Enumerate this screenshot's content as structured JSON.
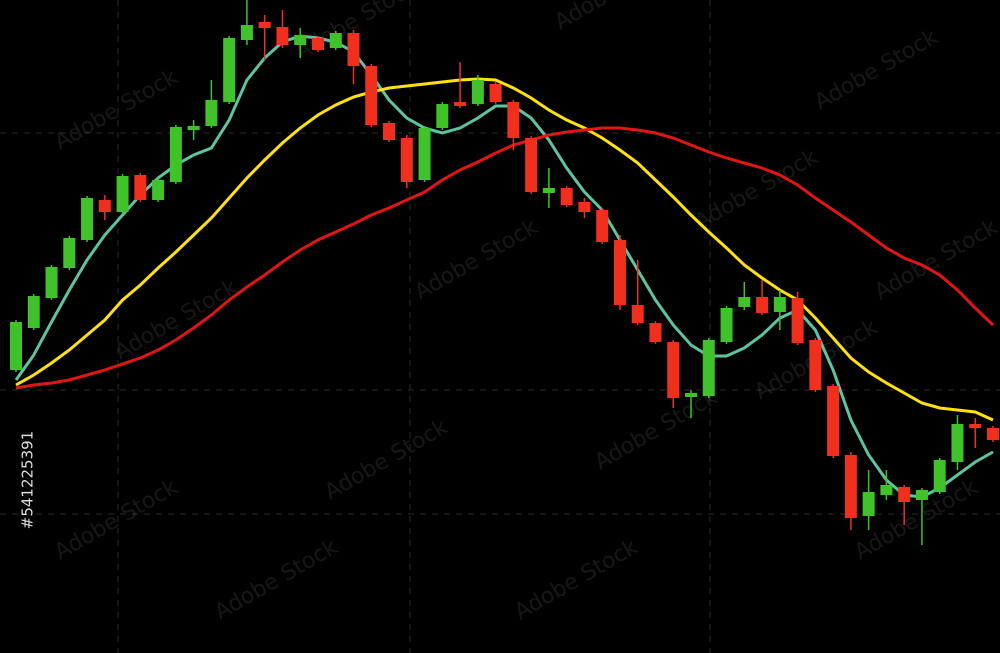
{
  "watermark": "Adobe Stock",
  "stock_id": "#541225391",
  "chart_data": {
    "type": "candlestick",
    "ylim": [
      0,
      653
    ],
    "up_color": "#3fc22a",
    "down_color": "#f0301c",
    "open": [
      283,
      325,
      355,
      385,
      413,
      453,
      441,
      478,
      453,
      471,
      523,
      527,
      551,
      613,
      631,
      626,
      608,
      615,
      605,
      620,
      587,
      530,
      515,
      473,
      525,
      551,
      549,
      569,
      551,
      515,
      460,
      465,
      451,
      443,
      413,
      348,
      330,
      311,
      256,
      257,
      311,
      346,
      356,
      341,
      355,
      313,
      267,
      198,
      137,
      158,
      166,
      153,
      161,
      191,
      229,
      225
    ],
    "high": [
      333,
      359,
      388,
      417,
      457,
      458,
      479,
      480,
      475,
      528,
      533,
      573,
      617,
      653,
      638,
      643,
      625,
      617,
      622,
      623,
      589,
      532,
      518,
      527,
      551,
      591,
      578,
      571,
      553,
      517,
      485,
      467,
      455,
      445,
      418,
      393,
      332,
      313,
      263,
      315,
      347,
      371,
      373,
      363,
      361,
      315,
      269,
      201,
      183,
      183,
      168,
      165,
      195,
      238,
      235,
      227
    ],
    "low": [
      281,
      323,
      353,
      383,
      411,
      433,
      439,
      451,
      451,
      469,
      513,
      525,
      549,
      608,
      593,
      605,
      595,
      601,
      603,
      569,
      526,
      511,
      465,
      471,
      523,
      545,
      547,
      549,
      503,
      459,
      445,
      446,
      435,
      409,
      343,
      328,
      309,
      245,
      235,
      255,
      309,
      343,
      338,
      323,
      308,
      261,
      195,
      123,
      123,
      153,
      128,
      108,
      159,
      183,
      205,
      211
    ],
    "close": [
      331,
      357,
      386,
      415,
      455,
      441,
      477,
      453,
      473,
      526,
      527,
      553,
      615,
      628,
      625,
      608,
      618,
      603,
      620,
      587,
      528,
      513,
      471,
      525,
      549,
      547,
      573,
      551,
      515,
      461,
      465,
      448,
      441,
      411,
      348,
      330,
      311,
      255,
      260,
      313,
      345,
      356,
      340,
      356,
      310,
      263,
      197,
      135,
      161,
      168,
      151,
      163,
      193,
      229,
      225,
      213
    ],
    "lines": [
      {
        "color": "#5ec4a0",
        "values": [
          273,
          298,
          331,
          363,
          393,
          418,
          438,
          458,
          475,
          488,
          498,
          505,
          533,
          573,
          595,
          611,
          617,
          615,
          611,
          601,
          578,
          553,
          535,
          525,
          520,
          525,
          535,
          547,
          547,
          535,
          513,
          485,
          461,
          443,
          413,
          383,
          353,
          328,
          308,
          297,
          297,
          305,
          318,
          335,
          343,
          323,
          283,
          233,
          198,
          173,
          158,
          156,
          165,
          178,
          191,
          201
        ]
      },
      {
        "color": "#ffe010",
        "values": [
          268,
          278,
          290,
          303,
          318,
          333,
          353,
          368,
          385,
          401,
          418,
          435,
          455,
          475,
          493,
          510,
          525,
          538,
          548,
          556,
          561,
          565,
          567,
          569,
          571,
          573,
          574,
          573,
          565,
          555,
          543,
          533,
          525,
          515,
          503,
          490,
          473,
          456,
          438,
          421,
          405,
          388,
          375,
          363,
          353,
          335,
          315,
          295,
          281,
          270,
          260,
          250,
          245,
          243,
          241,
          233
        ]
      },
      {
        "color": "#e01616",
        "values": [
          265,
          268,
          270,
          273,
          278,
          283,
          289,
          295,
          303,
          313,
          325,
          338,
          353,
          366,
          378,
          391,
          403,
          413,
          421,
          429,
          438,
          445,
          453,
          461,
          473,
          483,
          491,
          500,
          508,
          513,
          518,
          521,
          523,
          525,
          525,
          523,
          520,
          515,
          508,
          501,
          495,
          490,
          485,
          478,
          468,
          455,
          443,
          431,
          418,
          405,
          395,
          388,
          378,
          363,
          345,
          328
        ]
      }
    ]
  }
}
